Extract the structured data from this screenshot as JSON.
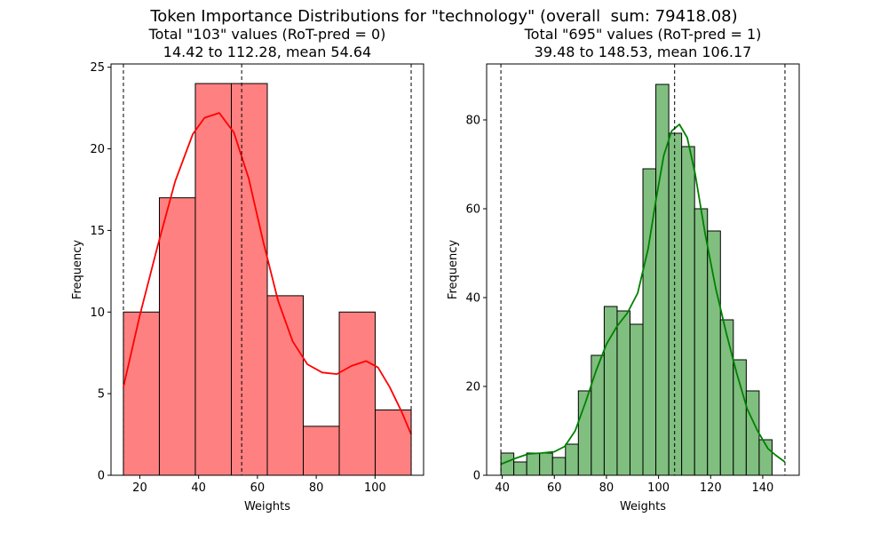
{
  "figure": {
    "title": "Token Importance Distributions for \"technology\" (overall  sum: 79418.08)"
  },
  "chart_data": [
    {
      "type": "bar",
      "subtype": "histogram-with-kde",
      "title_line1": "Total \"103\" values (RoT-pred = 0)",
      "title_line2": "14.42 to 112.28, mean 54.64",
      "xlabel": "Weights",
      "ylabel": "Frequency",
      "xlim": [
        10.2,
        116.5
      ],
      "ylim": [
        0,
        25.2
      ],
      "xticks": [
        20,
        40,
        60,
        80,
        100
      ],
      "yticks": [
        0,
        5,
        10,
        15,
        20,
        25
      ],
      "bar_color": "#ff8080",
      "kde_color": "#ff0000",
      "bins": [
        {
          "x0": 14.42,
          "x1": 26.65,
          "count": 10
        },
        {
          "x0": 26.65,
          "x1": 38.88,
          "count": 17
        },
        {
          "x0": 38.88,
          "x1": 51.12,
          "count": 24
        },
        {
          "x0": 51.12,
          "x1": 63.35,
          "count": 24
        },
        {
          "x0": 63.35,
          "x1": 75.58,
          "count": 11
        },
        {
          "x0": 75.58,
          "x1": 87.82,
          "count": 3
        },
        {
          "x0": 87.82,
          "x1": 100.05,
          "count": 10
        },
        {
          "x0": 100.05,
          "x1": 112.28,
          "count": 4
        }
      ],
      "kde": {
        "x": [
          14.4,
          20,
          26,
          32,
          38,
          42,
          47,
          52,
          57,
          62,
          67,
          72,
          77,
          82,
          87,
          92,
          97,
          101,
          105,
          109,
          112.3
        ],
        "y": [
          5.4,
          9.8,
          14.0,
          18.0,
          20.9,
          21.9,
          22.2,
          21.0,
          18.2,
          14.3,
          10.7,
          8.2,
          6.8,
          6.3,
          6.2,
          6.7,
          7.0,
          6.6,
          5.4,
          3.9,
          2.5
        ]
      },
      "vlines": [
        14.42,
        54.64,
        112.28
      ]
    },
    {
      "type": "bar",
      "subtype": "histogram-with-kde",
      "title_line1": "Total \"695\" values (RoT-pred = 1)",
      "title_line2": "39.48 to 148.53, mean 106.17",
      "xlabel": "Weights",
      "ylabel": "Frequency",
      "xlim": [
        34.0,
        154.0
      ],
      "ylim": [
        0,
        92.6
      ],
      "xticks": [
        40,
        60,
        80,
        100,
        120,
        140
      ],
      "yticks": [
        0,
        20,
        40,
        60,
        80
      ],
      "bar_color": "#80bf80",
      "kde_color": "#008000",
      "bins": [
        {
          "x0": 39.48,
          "x1": 44.44,
          "count": 5
        },
        {
          "x0": 44.44,
          "x1": 49.39,
          "count": 3
        },
        {
          "x0": 49.39,
          "x1": 54.35,
          "count": 5
        },
        {
          "x0": 54.35,
          "x1": 59.31,
          "count": 5
        },
        {
          "x0": 59.31,
          "x1": 64.27,
          "count": 4
        },
        {
          "x0": 64.27,
          "x1": 69.22,
          "count": 7
        },
        {
          "x0": 69.22,
          "x1": 74.18,
          "count": 19
        },
        {
          "x0": 74.18,
          "x1": 79.14,
          "count": 27
        },
        {
          "x0": 79.14,
          "x1": 84.1,
          "count": 38
        },
        {
          "x0": 84.1,
          "x1": 89.05,
          "count": 37
        },
        {
          "x0": 89.05,
          "x1": 94.01,
          "count": 34
        },
        {
          "x0": 94.01,
          "x1": 98.97,
          "count": 69
        },
        {
          "x0": 98.97,
          "x1": 103.93,
          "count": 88
        },
        {
          "x0": 103.93,
          "x1": 108.88,
          "count": 77
        },
        {
          "x0": 108.88,
          "x1": 113.84,
          "count": 74
        },
        {
          "x0": 113.84,
          "x1": 118.8,
          "count": 60
        },
        {
          "x0": 118.8,
          "x1": 123.76,
          "count": 55
        },
        {
          "x0": 123.76,
          "x1": 128.71,
          "count": 35
        },
        {
          "x0": 128.71,
          "x1": 133.67,
          "count": 26
        },
        {
          "x0": 133.67,
          "x1": 138.63,
          "count": 19
        },
        {
          "x0": 138.63,
          "x1": 143.58,
          "count": 8
        }
      ],
      "kde": {
        "x": [
          39.5,
          45,
          50,
          55,
          60,
          64,
          68,
          72,
          76,
          80,
          84,
          88,
          92,
          96,
          99,
          102,
          105,
          108,
          111,
          114,
          118,
          122,
          126,
          130,
          134,
          138,
          142,
          145,
          148.5
        ],
        "y": [
          2.5,
          3.8,
          4.8,
          5.0,
          5.3,
          6.5,
          10.0,
          16.5,
          23.5,
          29.5,
          33.5,
          36.5,
          41.0,
          51.0,
          62.0,
          72.0,
          77.5,
          79.0,
          76.0,
          68.0,
          54.0,
          42.0,
          32.0,
          23.0,
          15.0,
          10.0,
          6.0,
          4.5,
          3.0
        ]
      },
      "vlines": [
        39.48,
        106.17,
        148.53
      ]
    }
  ]
}
